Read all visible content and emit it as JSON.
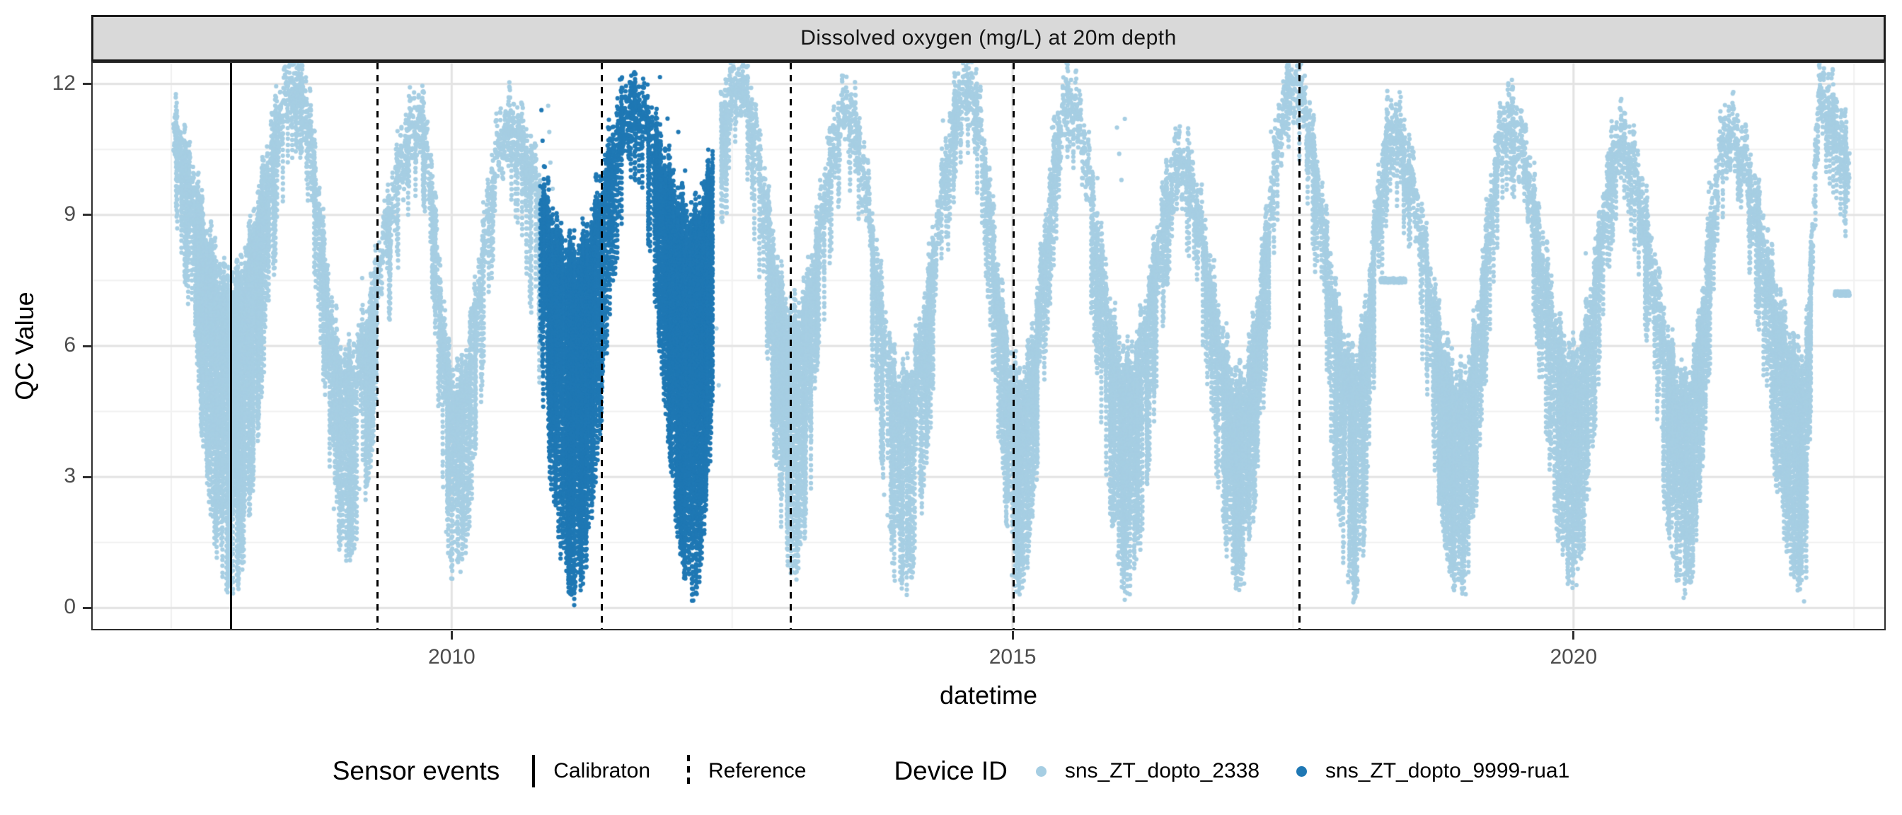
{
  "legend": {
    "sensor_events_title": "Sensor events",
    "calibration_label": "Calibraton",
    "reference_label": "Reference",
    "device_id_title": "Device ID"
  },
  "chart_data": {
    "type": "scatter",
    "title": "Dissolved oxygen (mg/L) at 20m depth",
    "xlabel": "datetime",
    "ylabel": "QC Value",
    "xlim": [
      2006.8,
      2022.77
    ],
    "ylim": [
      -0.48,
      12.48
    ],
    "x_ticks": [
      {
        "label": "2010",
        "year": 2010
      },
      {
        "label": "2015",
        "year": 2015
      },
      {
        "label": "2020",
        "year": 2020
      }
    ],
    "x_minor": [
      2007.5,
      2012.5,
      2017.5,
      2022.5
    ],
    "y_ticks": [
      {
        "label": "0",
        "value": 0
      },
      {
        "label": "3",
        "value": 3
      },
      {
        "label": "6",
        "value": 6
      },
      {
        "label": "9",
        "value": 9
      },
      {
        "label": "12",
        "value": 12
      }
    ],
    "y_minor": [
      1.5,
      4.5,
      7.5,
      10.5
    ],
    "grid": {
      "major_color": "#E3E3E3",
      "minor_color": "#F1F1F1"
    },
    "strip_fill": "#D9D9D9",
    "event_line_color": "#000000",
    "axis_text_color": "#4D4D4D",
    "events": {
      "calibration": [
        2008.03
      ],
      "reference": [
        2009.34,
        2011.34,
        2013.02,
        2015.01,
        2017.56
      ]
    },
    "series": [
      {
        "name": "sns_ZT_dopto_2338",
        "color": "#A6CEE3",
        "intervals": [
          [
            2007.52,
            2010.79
          ],
          [
            2012.4,
            2022.46
          ]
        ],
        "extra_points": [
          [
            2010.86,
            11.5
          ],
          [
            2010.87,
            10.9
          ],
          [
            2010.88,
            10.2
          ],
          [
            2010.9,
            9.6
          ],
          [
            2012.36,
            6.4
          ],
          [
            2012.38,
            5.1
          ],
          [
            2015.93,
            11.0
          ],
          [
            2015.95,
            10.4
          ],
          [
            2015.97,
            9.8
          ],
          [
            2016.0,
            11.2
          ]
        ]
      },
      {
        "name": "sns_ZT_dopto_9999-rua1",
        "color": "#1F78B4",
        "intervals": [
          [
            2010.79,
            2012.33
          ]
        ],
        "extra_points": [
          [
            2010.8,
            11.4
          ],
          [
            2010.81,
            10.7
          ],
          [
            2010.83,
            10.1
          ],
          [
            2011.5,
            12.1
          ],
          [
            2012.02,
            10.9
          ]
        ]
      }
    ],
    "flat_segments": [
      {
        "start": 2010.46,
        "end": 2010.6,
        "value": 10.9,
        "series": 0
      },
      {
        "start": 2018.28,
        "end": 2018.5,
        "value": 7.5,
        "series": 0
      },
      {
        "start": 2022.33,
        "end": 2022.46,
        "value": 7.2,
        "series": 0
      }
    ],
    "seasonal": {
      "peaks": [
        [
          2007.45,
          11.3
        ],
        [
          2008.62,
          12.35
        ],
        [
          2009.72,
          11.4
        ],
        [
          2010.5,
          11.2
        ],
        [
          2011.62,
          11.75
        ],
        [
          2012.55,
          12.35
        ],
        [
          2013.52,
          11.6
        ],
        [
          2014.6,
          12.2
        ],
        [
          2015.5,
          11.8
        ],
        [
          2016.5,
          10.4
        ],
        [
          2017.5,
          12.3
        ],
        [
          2018.38,
          11.2
        ],
        [
          2019.42,
          11.4
        ],
        [
          2020.42,
          10.9
        ],
        [
          2021.38,
          11.1
        ],
        [
          2022.2,
          11.9
        ]
      ],
      "troughs": [
        [
          2007.05,
          0.5,
          5.0
        ],
        [
          2008.03,
          0.05,
          7.3
        ],
        [
          2009.05,
          1.0,
          5.5
        ],
        [
          2010.03,
          0.3,
          5.0
        ],
        [
          2011.1,
          0.05,
          8.0
        ],
        [
          2012.15,
          0.05,
          8.8
        ],
        [
          2013.05,
          0.6,
          6.5
        ],
        [
          2014.02,
          0.15,
          5.0
        ],
        [
          2015.06,
          0.2,
          5.0
        ],
        [
          2016.02,
          0.1,
          5.5
        ],
        [
          2017.02,
          0.3,
          5.0
        ],
        [
          2018.05,
          0.1,
          5.5
        ],
        [
          2019.0,
          0.1,
          5.0
        ],
        [
          2020.0,
          0.3,
          5.5
        ],
        [
          2021.0,
          0.15,
          5.0
        ],
        [
          2022.05,
          0.1,
          5.5
        ],
        [
          2023.0,
          0.5,
          5.0
        ]
      ]
    },
    "render": {
      "dt": 0.0027,
      "point_radius": 3.1,
      "seed": 11
    }
  }
}
